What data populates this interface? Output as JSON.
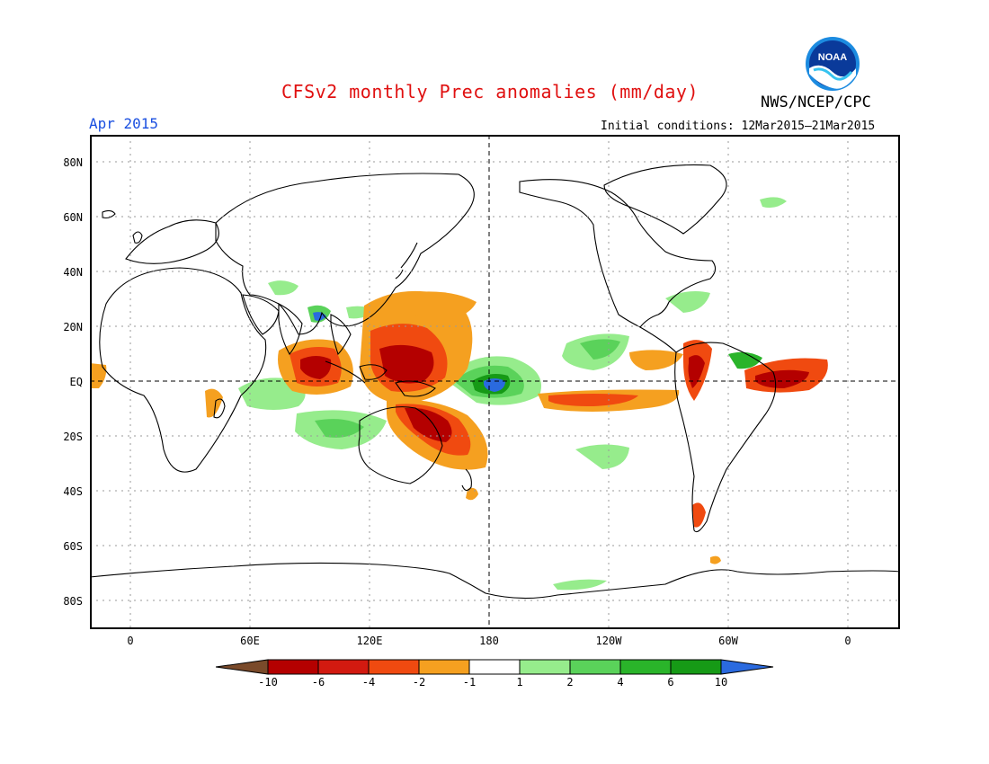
{
  "header": {
    "title": "CFSv2 monthly Prec anomalies (mm/day)",
    "agency": "NWS/NCEP/CPC",
    "month": "Apr 2015",
    "initial_conditions": "Initial conditions: 12Mar2015–21Mar2015",
    "logo_text": "NOAA"
  },
  "axes": {
    "lat_labels": [
      "80N",
      "60N",
      "40N",
      "20N",
      "EQ",
      "20S",
      "40S",
      "60S",
      "80S"
    ],
    "lon_labels": [
      "0",
      "60E",
      "120E",
      "180",
      "120W",
      "60W",
      "0"
    ]
  },
  "legend": {
    "labels": [
      "-10",
      "-6",
      "-4",
      "-2",
      "-1",
      "1",
      "2",
      "4",
      "6",
      "10"
    ],
    "colors": [
      "#7a4a2a",
      "#b40000",
      "#d21a10",
      "#f04a10",
      "#f5a020",
      "#ffffff",
      "#96ec8c",
      "#5ad25a",
      "#2ab42a",
      "#169a16",
      "#2a6adf"
    ]
  }
}
